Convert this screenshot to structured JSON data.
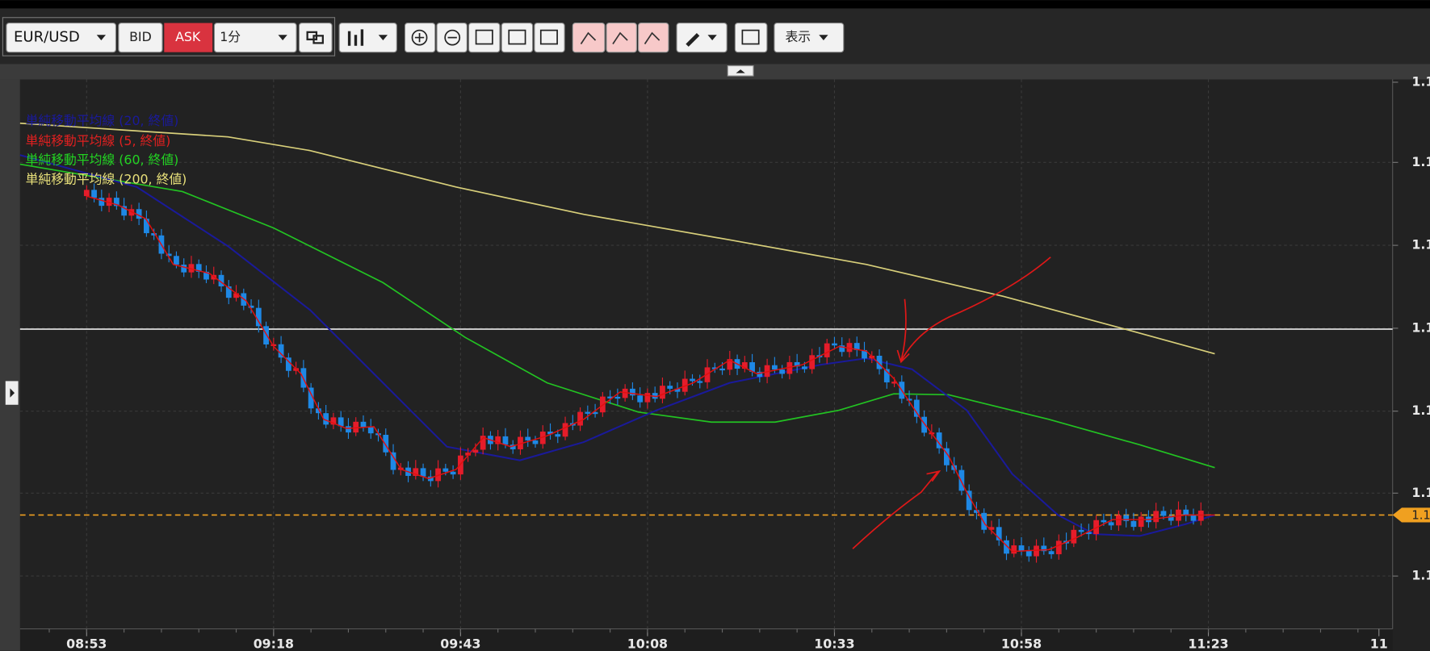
{
  "toolbar": {
    "pair": "EUR/USD",
    "bid": "BID",
    "ask": "ASK",
    "timeframe": "1分",
    "view": "表示"
  },
  "legend": [
    "単純移動平均線 (20, 終値)",
    "単純移動平均線 (5, 終値)",
    "単純移動平均線 (60, 終値)",
    "単純移動平均線 (200, 終値)"
  ],
  "x_axis": [
    "08:53",
    "09:18",
    "09:43",
    "10:08",
    "10:33",
    "10:58",
    "11:23",
    "11"
  ],
  "y_axis": [
    "1.1",
    "1.1",
    "1.1",
    "1.1",
    "1.1",
    "1.1",
    "1.1"
  ],
  "price_marker": "1.1"
}
